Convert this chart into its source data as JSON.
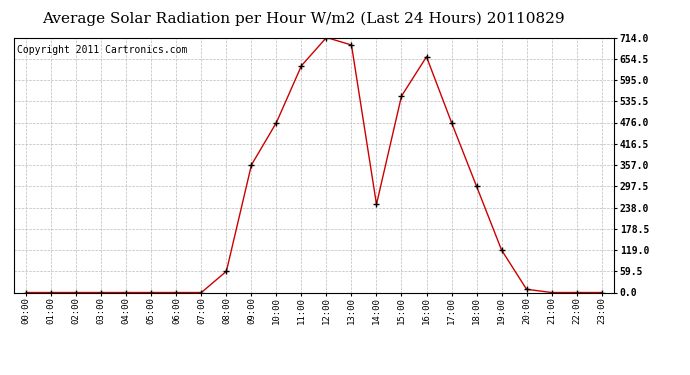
{
  "title": "Average Solar Radiation per Hour W/m2 (Last 24 Hours) 20110829",
  "copyright": "Copyright 2011 Cartronics.com",
  "hours": [
    0,
    1,
    2,
    3,
    4,
    5,
    6,
    7,
    8,
    9,
    10,
    11,
    12,
    13,
    14,
    15,
    16,
    17,
    18,
    19,
    20,
    21,
    22,
    23
  ],
  "values": [
    0,
    0,
    0,
    0,
    0,
    0,
    0,
    0,
    59.5,
    357.0,
    476.0,
    635.0,
    714.0,
    693.0,
    247.0,
    550.0,
    660.0,
    476.0,
    297.5,
    119.0,
    9.0,
    0,
    0,
    0
  ],
  "x_labels": [
    "00:00",
    "01:00",
    "02:00",
    "03:00",
    "04:00",
    "05:00",
    "06:00",
    "07:00",
    "08:00",
    "09:00",
    "10:00",
    "11:00",
    "12:00",
    "13:00",
    "14:00",
    "15:00",
    "16:00",
    "17:00",
    "18:00",
    "19:00",
    "20:00",
    "21:00",
    "22:00",
    "23:00"
  ],
  "y_ticks": [
    0.0,
    59.5,
    119.0,
    178.5,
    238.0,
    297.5,
    357.0,
    416.5,
    476.0,
    535.5,
    595.0,
    654.5,
    714.0
  ],
  "y_max": 714.0,
  "y_min": 0.0,
  "line_color": "#cc0000",
  "marker": "+",
  "bg_color": "#ffffff",
  "grid_color": "#bbbbbb",
  "title_fontsize": 11,
  "copyright_fontsize": 7
}
